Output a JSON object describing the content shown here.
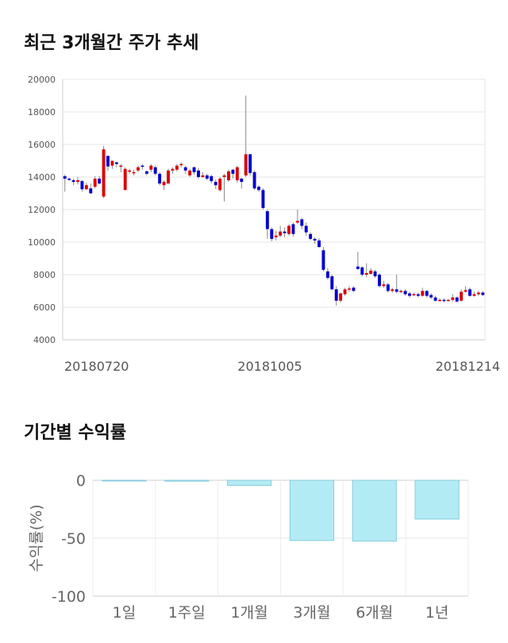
{
  "price_section": {
    "title": "최근 3개월간 주가 추세"
  },
  "returns_section": {
    "title": "기간별 수익률"
  },
  "chart_data": [
    {
      "type": "candlestick",
      "y_ticks": [
        "20000",
        "18000",
        "16000",
        "14000",
        "12000",
        "10000",
        "8000",
        "6000",
        "4000"
      ],
      "ylim": [
        4000,
        20000
      ],
      "x_tick_labels": [
        "20180720",
        "20181005",
        "20181214"
      ],
      "grid": true,
      "up_color": "#dd0000",
      "down_color": "#0000cc",
      "candles": [
        [
          14050,
          13900,
          14150,
          13100
        ],
        [
          13900,
          13850,
          13950,
          13750
        ],
        [
          13800,
          13700,
          13900,
          13500
        ],
        [
          13700,
          13800,
          14000,
          13550
        ],
        [
          13750,
          13250,
          13800,
          13100
        ],
        [
          13250,
          13500,
          13650,
          13200
        ],
        [
          13300,
          13000,
          13600,
          12950
        ],
        [
          13400,
          13900,
          14050,
          13300
        ],
        [
          13900,
          13600,
          14050,
          13550
        ],
        [
          12800,
          15700,
          15900,
          12700
        ],
        [
          15300,
          14650,
          15300,
          14400
        ],
        [
          14700,
          15000,
          15000,
          14500
        ],
        [
          14900,
          14800,
          14950,
          14600
        ],
        [
          14700,
          14700,
          14800,
          14300
        ],
        [
          13200,
          14500,
          14600,
          13200
        ],
        [
          14400,
          14400,
          14500,
          14200
        ],
        [
          14300,
          14300,
          14450,
          14100
        ],
        [
          14400,
          14600,
          14700,
          14300
        ],
        [
          14700,
          14650,
          14800,
          14450
        ],
        [
          14350,
          14200,
          14400,
          14100
        ],
        [
          14450,
          14700,
          14800,
          14300
        ],
        [
          14600,
          14200,
          14700,
          14100
        ],
        [
          14200,
          13600,
          14300,
          13500
        ],
        [
          13500,
          13700,
          13800,
          13200
        ],
        [
          13600,
          14400,
          14500,
          13600
        ],
        [
          14400,
          14500,
          14600,
          14200
        ],
        [
          14450,
          14700,
          14800,
          14350
        ],
        [
          14750,
          14800,
          14900,
          14600
        ],
        [
          14600,
          14400,
          14700,
          14200
        ],
        [
          14100,
          14400,
          14500,
          14000
        ],
        [
          14600,
          14300,
          14650,
          14150
        ],
        [
          14400,
          14000,
          14550,
          13900
        ],
        [
          14000,
          14100,
          14300,
          13950
        ],
        [
          14100,
          13900,
          14200,
          13800
        ],
        [
          14050,
          13750,
          14150,
          13600
        ],
        [
          13700,
          13500,
          13850,
          13250
        ],
        [
          13200,
          13900,
          14000,
          13100
        ],
        [
          14000,
          14100,
          14200,
          12500
        ],
        [
          13800,
          14350,
          14450,
          13700
        ],
        [
          14450,
          14200,
          14500,
          13900
        ],
        [
          13800,
          14600,
          14700,
          13650
        ],
        [
          13900,
          13700,
          13950,
          13300
        ],
        [
          14100,
          15400,
          19000,
          14000
        ],
        [
          15400,
          14250,
          15400,
          14100
        ],
        [
          14300,
          13300,
          14400,
          13200
        ],
        [
          13400,
          13200,
          13500,
          13100
        ],
        [
          13200,
          12100,
          13300,
          12000
        ],
        [
          11900,
          10800,
          12000,
          10200
        ],
        [
          10800,
          10200,
          10900,
          10050
        ],
        [
          10300,
          10400,
          10700,
          10100
        ],
        [
          10400,
          10650,
          11000,
          10300
        ],
        [
          10650,
          10550,
          10900,
          10300
        ],
        [
          10500,
          11000,
          11100,
          10400
        ],
        [
          11100,
          10500,
          11200,
          10350
        ],
        [
          11200,
          11300,
          12000,
          11100
        ],
        [
          11400,
          11000,
          11500,
          10800
        ],
        [
          11000,
          10600,
          11200,
          10400
        ],
        [
          10500,
          10200,
          10600,
          10100
        ],
        [
          10200,
          10100,
          10300,
          9900
        ],
        [
          10100,
          9700,
          10250,
          9650
        ],
        [
          9500,
          8300,
          9700,
          8200
        ],
        [
          8200,
          7800,
          8400,
          7700
        ],
        [
          7900,
          7100,
          8000,
          7050
        ],
        [
          7100,
          6400,
          7300,
          6100
        ],
        [
          6400,
          6850,
          6900,
          6300
        ],
        [
          6800,
          7100,
          7200,
          6700
        ],
        [
          7150,
          7150,
          7300,
          6950
        ],
        [
          7200,
          7000,
          7300,
          6950
        ],
        [
          8500,
          8350,
          9400,
          8300
        ],
        [
          8450,
          8000,
          8500,
          7900
        ],
        [
          8000,
          8100,
          8700,
          7850
        ],
        [
          8050,
          8250,
          8400,
          8000
        ],
        [
          8200,
          7900,
          8300,
          7800
        ],
        [
          8000,
          7300,
          8100,
          7200
        ],
        [
          7300,
          7400,
          7600,
          7200
        ],
        [
          7400,
          7000,
          7500,
          6900
        ],
        [
          7000,
          7100,
          7200,
          6900
        ],
        [
          7100,
          6950,
          8000,
          6850
        ],
        [
          6950,
          7000,
          7100,
          6850
        ],
        [
          7000,
          6800,
          7100,
          6700
        ],
        [
          6850,
          6700,
          6950,
          6600
        ],
        [
          6800,
          6800,
          6900,
          6700
        ],
        [
          6800,
          6700,
          6900,
          6600
        ],
        [
          6700,
          7000,
          7200,
          6650
        ],
        [
          7000,
          6700,
          7050,
          6600
        ],
        [
          6750,
          6600,
          6850,
          6500
        ],
        [
          6600,
          6400,
          6700,
          6350
        ],
        [
          6400,
          6450,
          6550,
          6350
        ],
        [
          6450,
          6400,
          6550,
          6300
        ],
        [
          6400,
          6450,
          6500,
          6350
        ],
        [
          6450,
          6600,
          6800,
          6350
        ],
        [
          6600,
          6350,
          6650,
          6300
        ],
        [
          6400,
          6950,
          7100,
          6350
        ],
        [
          6950,
          7050,
          7300,
          6900
        ],
        [
          7100,
          6700,
          7200,
          6650
        ],
        [
          6700,
          6800,
          6950,
          6650
        ],
        [
          6800,
          6900,
          7000,
          6700
        ],
        [
          6900,
          6750,
          7000,
          6700
        ]
      ]
    },
    {
      "type": "bar",
      "ylabel": "수익률(%)",
      "y_ticks": [
        "0",
        "-50",
        "-100"
      ],
      "ylim": [
        -100,
        0
      ],
      "categories": [
        "1일",
        "1주일",
        "1개월",
        "3개월",
        "6개월",
        "1년"
      ],
      "values": [
        0,
        -0.8,
        -4.5,
        -52,
        -52.5,
        -33.5
      ],
      "bar_color": "#b3ebf5",
      "bar_border": "#88ccdd",
      "grid": true
    }
  ]
}
